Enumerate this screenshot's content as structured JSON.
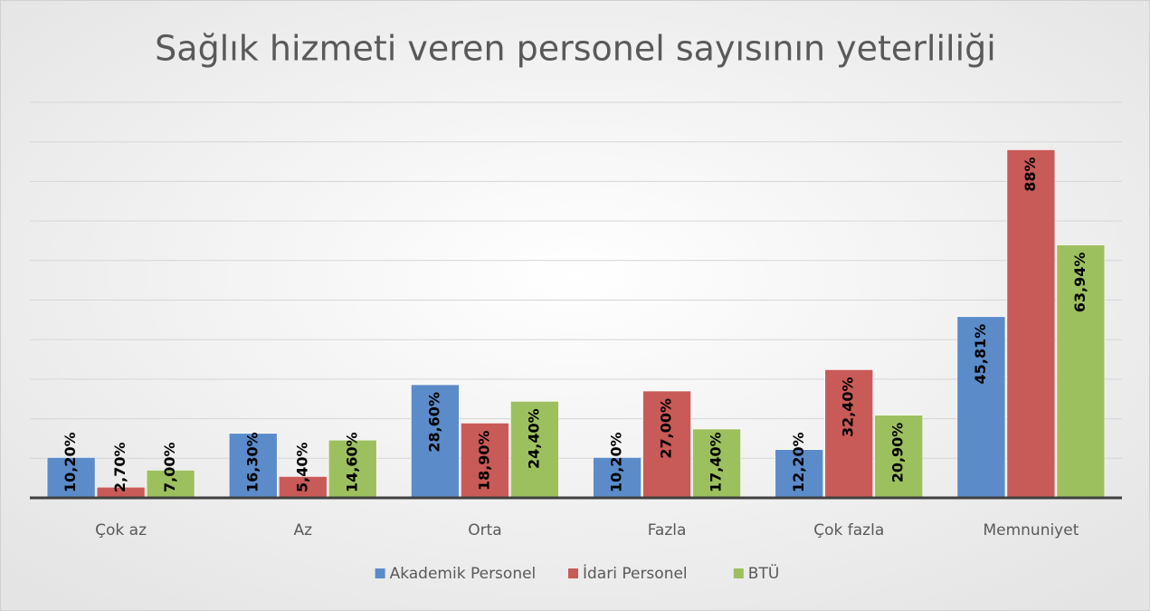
{
  "chart_data": {
    "type": "bar",
    "title": "Sağlık hizmeti veren personel sayısının yeterliliği",
    "categories": [
      "Çok az",
      "Az",
      "Orta",
      "Fazla",
      "Çok fazla",
      "Memnuniyet"
    ],
    "series": [
      {
        "name": "Akademik Personel",
        "color": "#5b8bc9",
        "values": [
          10.2,
          16.3,
          28.6,
          10.2,
          12.2,
          45.81
        ],
        "value_labels": [
          "10,20%",
          "16,30%",
          "28,60%",
          "10,20%",
          "12,20%",
          "45,81%"
        ]
      },
      {
        "name": "İdari Personel",
        "color": "#c85a57",
        "values": [
          2.7,
          5.4,
          18.9,
          27.0,
          32.4,
          88
        ],
        "value_labels": [
          "2,70%",
          "5,40%",
          "18,90%",
          "27,00%",
          "32,40%",
          "88%"
        ]
      },
      {
        "name": "BTÜ",
        "color": "#9dc05f",
        "values": [
          7.0,
          14.6,
          24.4,
          17.4,
          20.9,
          63.94
        ],
        "value_labels": [
          "7,00%",
          "14,60%",
          "24,40%",
          "17,40%",
          "20,90%",
          "63,94%"
        ]
      }
    ],
    "ylim": [
      0,
      100
    ],
    "yticks": [
      0,
      10,
      20,
      30,
      40,
      50,
      60,
      70,
      80,
      90,
      100
    ],
    "grid": true,
    "legend": "bottom"
  }
}
